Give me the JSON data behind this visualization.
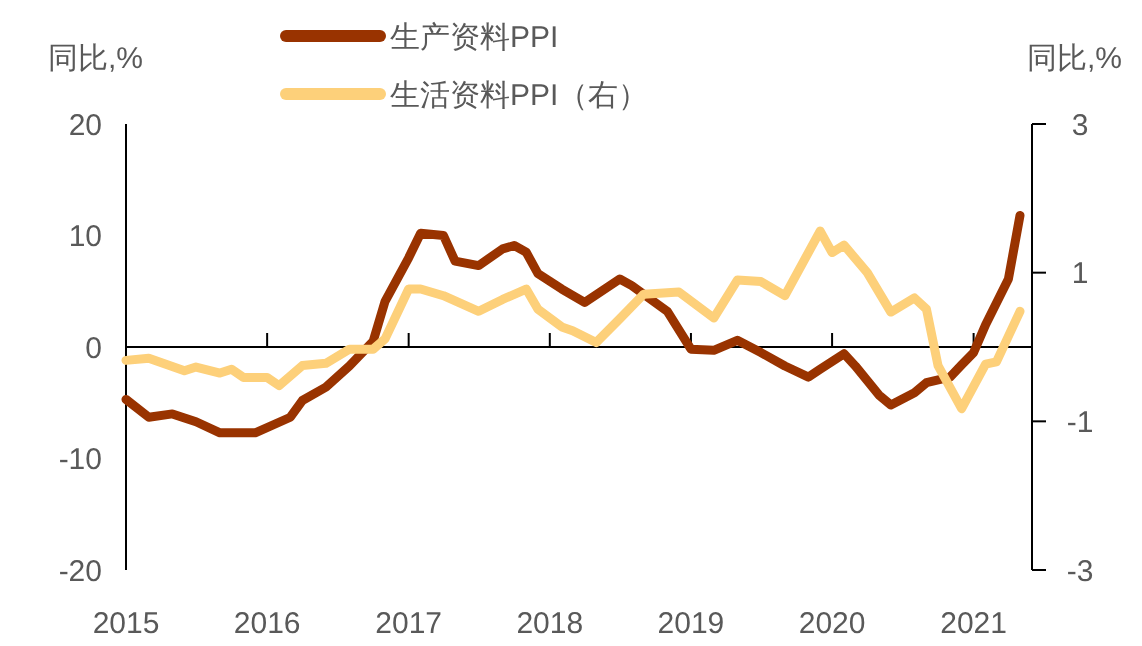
{
  "chart_data": {
    "type": "line",
    "ylabel": "同比,%",
    "y2label": "同比,%",
    "legend": "top",
    "marker": "none",
    "line_style": "solid",
    "xlim": [
      "2015-01",
      "2021-06"
    ],
    "xticks": [
      "2015",
      "2016",
      "2017",
      "2018",
      "2019",
      "2020",
      "2021"
    ],
    "ylim": [
      -20,
      20
    ],
    "yticks": [
      -20,
      -10,
      0,
      10,
      20
    ],
    "y2lim": [
      -3,
      3
    ],
    "y2ticks": [
      -3,
      -1,
      1,
      3
    ],
    "series": [
      {
        "name": "生产资料PPI",
        "color": "#993300",
        "x": [
          "2015-01",
          "2015-03",
          "2015-05",
          "2015-07",
          "2015-09",
          "2015-12",
          "2016-03",
          "2016-04",
          "2016-06",
          "2016-08",
          "2016-10",
          "2016-11",
          "2017-01",
          "2017-02",
          "2017-04",
          "2017-05",
          "2017-07",
          "2017-09",
          "2017-10",
          "2017-11",
          "2017-12",
          "2018-02",
          "2018-04",
          "2018-07",
          "2018-08",
          "2018-11",
          "2019-01",
          "2019-03",
          "2019-05",
          "2019-07",
          "2019-09",
          "2019-11",
          "2019-12",
          "2020-02",
          "2020-03",
          "2020-05",
          "2020-06",
          "2020-08",
          "2020-09",
          "2020-11",
          "2020-12",
          "2021-01",
          "2021-02",
          "2021-04",
          "2021-05"
        ],
        "values": [
          -4.7,
          -6.3,
          -6.0,
          -6.7,
          -7.7,
          -7.7,
          -6.3,
          -4.8,
          -3.6,
          -1.7,
          0.5,
          4.1,
          8.0,
          10.2,
          10.0,
          7.7,
          7.3,
          8.8,
          9.1,
          8.5,
          6.6,
          5.2,
          4.0,
          6.1,
          5.5,
          3.2,
          -0.2,
          -0.3,
          0.6,
          -0.5,
          -1.7,
          -2.7,
          -2.0,
          -0.6,
          -1.7,
          -4.3,
          -5.2,
          -4.1,
          -3.2,
          -2.7,
          -1.6,
          -0.5,
          2.0,
          6.1,
          11.8
        ]
      },
      {
        "name": "生活资料PPI（右）",
        "color": "#fdd07a",
        "axis": "y2",
        "x": [
          "2015-01",
          "2015-03",
          "2015-06",
          "2015-07",
          "2015-09",
          "2015-10",
          "2015-11",
          "2016-01",
          "2016-02",
          "2016-04",
          "2016-06",
          "2016-08",
          "2016-10",
          "2016-11",
          "2017-01",
          "2017-02",
          "2017-04",
          "2017-07",
          "2017-09",
          "2017-11",
          "2017-12",
          "2018-02",
          "2018-03",
          "2018-05",
          "2018-07",
          "2018-09",
          "2018-12",
          "2019-03",
          "2019-05",
          "2019-07",
          "2019-09",
          "2019-12",
          "2020-01",
          "2020-02",
          "2020-04",
          "2020-06",
          "2020-08",
          "2020-09",
          "2020-10",
          "2020-12",
          "2021-02",
          "2021-03",
          "2021-05"
        ],
        "values": [
          -0.18,
          -0.15,
          -0.32,
          -0.27,
          -0.35,
          -0.3,
          -0.41,
          -0.41,
          -0.52,
          -0.25,
          -0.22,
          -0.03,
          -0.03,
          0.11,
          0.78,
          0.78,
          0.69,
          0.48,
          0.64,
          0.78,
          0.51,
          0.27,
          0.22,
          0.06,
          0.38,
          0.71,
          0.74,
          0.39,
          0.9,
          0.88,
          0.69,
          1.56,
          1.27,
          1.37,
          1.0,
          0.47,
          0.66,
          0.51,
          -0.25,
          -0.83,
          -0.23,
          -0.2,
          0.48
        ]
      }
    ]
  }
}
